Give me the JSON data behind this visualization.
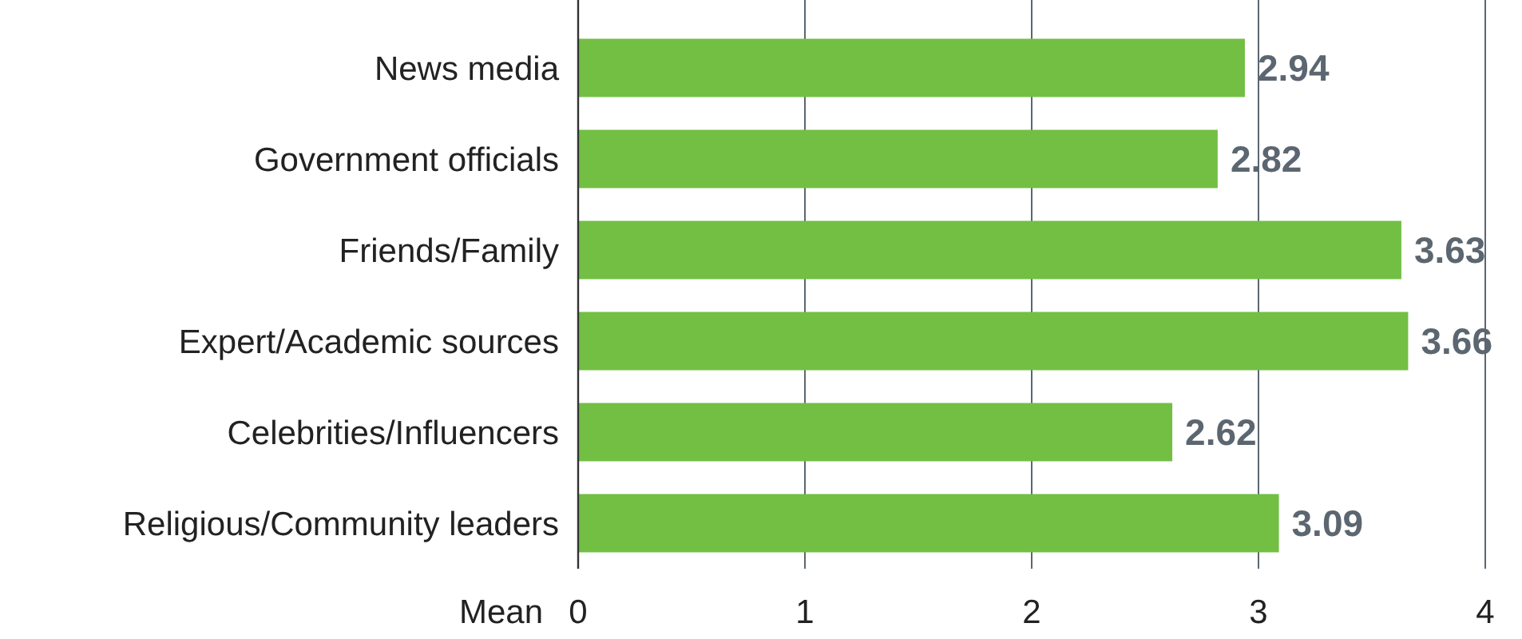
{
  "chart_data": {
    "type": "bar",
    "orientation": "horizontal",
    "xlabel": "Mean",
    "categories": [
      "News media",
      "Government officials",
      "Friends/Family",
      "Expert/Academic sources",
      "Celebrities/Influencers",
      "Religious/Community leaders"
    ],
    "values": [
      2.94,
      2.82,
      3.63,
      3.66,
      2.62,
      3.09
    ],
    "color": "#72bf44",
    "xlim": [
      0,
      4
    ],
    "xticks": [
      0,
      1,
      2,
      3,
      4
    ],
    "grid": "x",
    "data_labels": true
  }
}
